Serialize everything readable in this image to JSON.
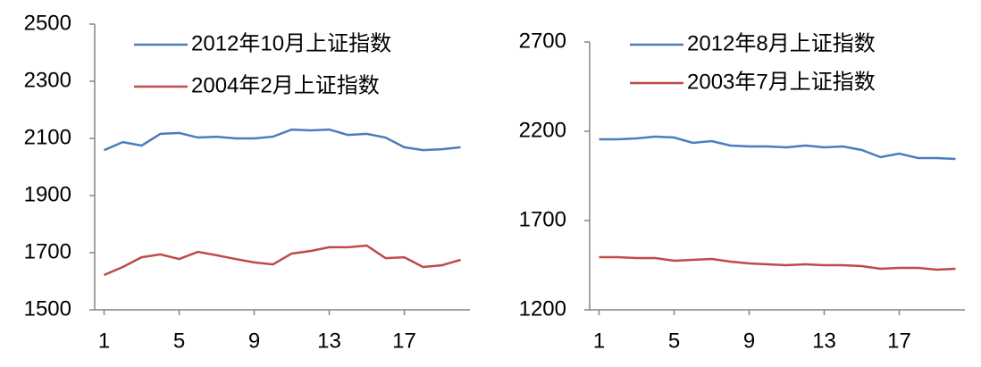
{
  "chart_data": [
    {
      "type": "line",
      "x": [
        1,
        2,
        3,
        4,
        5,
        6,
        7,
        8,
        9,
        10,
        11,
        12,
        13,
        14,
        15,
        16,
        17,
        18,
        19,
        20
      ],
      "xlim": [
        0.5,
        20.5
      ],
      "xticks": [
        1,
        5,
        9,
        13,
        17
      ],
      "ylim": [
        1500,
        2500
      ],
      "yticks": [
        1500,
        1700,
        1900,
        2100,
        2300,
        2500
      ],
      "series": [
        {
          "name": "2012年10月上证指数",
          "color": "#4a7ebb",
          "values": [
            2059,
            2087,
            2075,
            2116,
            2119,
            2103,
            2106,
            2100,
            2100,
            2106,
            2131,
            2128,
            2131,
            2112,
            2116,
            2103,
            2069,
            2059,
            2062,
            2069
          ]
        },
        {
          "name": "2004年2月上证指数",
          "color": "#be4b48",
          "values": [
            1622,
            1650,
            1684,
            1694,
            1678,
            1703,
            1691,
            1678,
            1666,
            1659,
            1697,
            1706,
            1719,
            1719,
            1725,
            1681,
            1684,
            1650,
            1656,
            1675
          ]
        }
      ]
    },
    {
      "type": "line",
      "x": [
        1,
        2,
        3,
        4,
        5,
        6,
        7,
        8,
        9,
        10,
        11,
        12,
        13,
        14,
        15,
        16,
        17,
        18,
        19,
        20
      ],
      "xlim": [
        0.5,
        20.5
      ],
      "xticks": [
        1,
        5,
        9,
        13,
        17
      ],
      "ylim": [
        1200,
        2700
      ],
      "yticks": [
        1200,
        1700,
        2200,
        2700
      ],
      "series": [
        {
          "name": "2012年8月上证指数",
          "color": "#4a7ebb",
          "values": [
            2155,
            2155,
            2160,
            2170,
            2165,
            2135,
            2145,
            2120,
            2115,
            2115,
            2110,
            2120,
            2110,
            2115,
            2095,
            2055,
            2075,
            2050,
            2050,
            2045
          ]
        },
        {
          "name": "2003年7月上证指数",
          "color": "#be4b48",
          "values": [
            1495,
            1495,
            1490,
            1490,
            1475,
            1480,
            1485,
            1470,
            1460,
            1455,
            1450,
            1455,
            1450,
            1450,
            1445,
            1430,
            1435,
            1435,
            1425,
            1430
          ]
        }
      ]
    }
  ]
}
